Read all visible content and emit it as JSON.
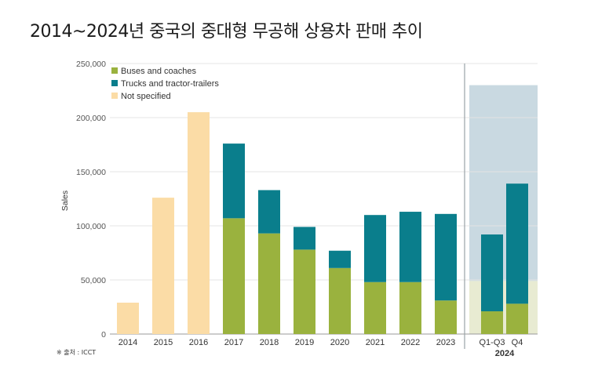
{
  "title": "2014~2024년 중국의 중대형 무공해 상용차 판매 추이",
  "source": "※ 출처 : ICCT",
  "colors": {
    "buses": "#9ab23e",
    "trucks": "#0a7e8c",
    "not_specified": "#fbdca6",
    "highlight_top": "#c9d9e1",
    "highlight_bottom": "#e8ebd2"
  },
  "chart_data": {
    "type": "bar",
    "stacked": true,
    "ylabel": "Sales",
    "ylim": [
      0,
      250000
    ],
    "yticks": [
      0,
      50000,
      100000,
      150000,
      200000,
      250000
    ],
    "ytick_labels": [
      "0",
      "50,000",
      "100,000",
      "150,000",
      "200,000",
      "250,000"
    ],
    "categories": [
      "2014",
      "2015",
      "2016",
      "2017",
      "2018",
      "2019",
      "2020",
      "2021",
      "2022",
      "2023",
      "Q1-Q3",
      "Q4"
    ],
    "group_label": "2024",
    "legend_position": "top-left",
    "series": [
      {
        "name": "Buses and coaches",
        "color": "#9ab23e",
        "values": [
          0,
          0,
          0,
          107000,
          93000,
          78000,
          61000,
          48000,
          48000,
          31000,
          21000,
          28000
        ]
      },
      {
        "name": "Trucks and tractor-trailers",
        "color": "#0a7e8c",
        "values": [
          0,
          0,
          0,
          69000,
          40000,
          21000,
          16000,
          62000,
          65000,
          80000,
          71000,
          111000
        ]
      },
      {
        "name": "Not specified",
        "color": "#fbdca6",
        "values": [
          29000,
          126000,
          205000,
          0,
          0,
          0,
          0,
          0,
          0,
          0,
          0,
          0
        ]
      }
    ],
    "highlight_band": {
      "top": 230000,
      "split": 49000
    }
  }
}
